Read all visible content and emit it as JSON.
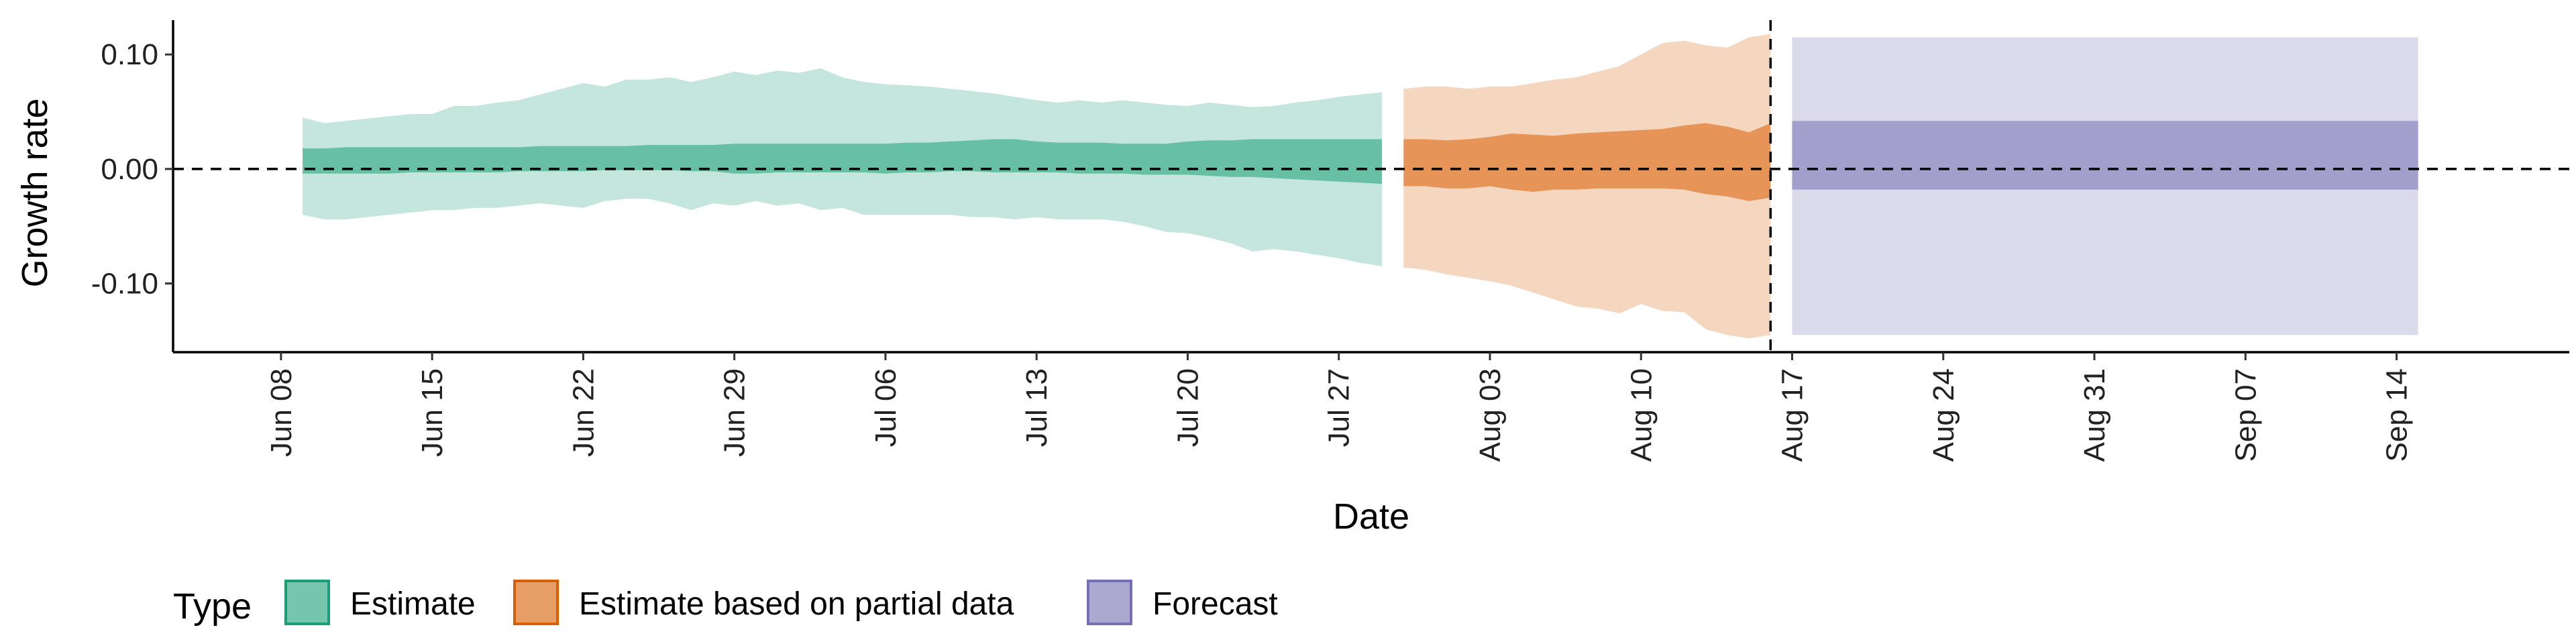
{
  "chart_data": {
    "type": "area",
    "xlabel": "Date",
    "ylabel": "Growth rate",
    "ylim": [
      -0.16,
      0.13
    ],
    "xlim": [
      "2020-06-03",
      "2020-09-22"
    ],
    "y_ticks": [
      -0.1,
      0.0,
      0.1
    ],
    "y_tick_labels": [
      "-0.10",
      "0.00",
      "0.10"
    ],
    "x_ticks": [
      "2020-06-08",
      "2020-06-15",
      "2020-06-22",
      "2020-06-29",
      "2020-07-06",
      "2020-07-13",
      "2020-07-20",
      "2020-07-27",
      "2020-08-03",
      "2020-08-10",
      "2020-08-17",
      "2020-08-24",
      "2020-08-31",
      "2020-09-07",
      "2020-09-14"
    ],
    "x_tick_labels": [
      "Jun 08",
      "Jun 15",
      "Jun 22",
      "Jun 29",
      "Jul 06",
      "Jul 13",
      "Jul 20",
      "Jul 27",
      "Aug 03",
      "Aug 10",
      "Aug 17",
      "Aug 24",
      "Aug 31",
      "Sep 07",
      "Sep 14"
    ],
    "reference_lines": {
      "horizontal_y": 0.0,
      "vertical_x": "2020-08-16"
    },
    "legend": {
      "title": "Type",
      "placement": "bottom-left",
      "entries": [
        {
          "label": "Estimate",
          "color": "#1b9e77"
        },
        {
          "label": "Estimate based on partial data",
          "color": "#d95f02"
        },
        {
          "label": "Forecast",
          "color": "#7570b3"
        }
      ]
    },
    "series": [
      {
        "type": "Estimate",
        "color": "#1b9e77",
        "x": [
          "2020-06-09",
          "2020-06-10",
          "2020-06-11",
          "2020-06-12",
          "2020-06-13",
          "2020-06-14",
          "2020-06-15",
          "2020-06-16",
          "2020-06-17",
          "2020-06-18",
          "2020-06-19",
          "2020-06-20",
          "2020-06-21",
          "2020-06-22",
          "2020-06-23",
          "2020-06-24",
          "2020-06-25",
          "2020-06-26",
          "2020-06-27",
          "2020-06-28",
          "2020-06-29",
          "2020-06-30",
          "2020-07-01",
          "2020-07-02",
          "2020-07-03",
          "2020-07-04",
          "2020-07-05",
          "2020-07-06",
          "2020-07-07",
          "2020-07-08",
          "2020-07-09",
          "2020-07-10",
          "2020-07-11",
          "2020-07-12",
          "2020-07-13",
          "2020-07-14",
          "2020-07-15",
          "2020-07-16",
          "2020-07-17",
          "2020-07-18",
          "2020-07-19",
          "2020-07-20",
          "2020-07-21",
          "2020-07-22",
          "2020-07-23",
          "2020-07-24",
          "2020-07-25",
          "2020-07-26",
          "2020-07-27",
          "2020-07-28",
          "2020-07-29"
        ],
        "outer_upper": [
          0.045,
          0.04,
          0.042,
          0.044,
          0.046,
          0.048,
          0.048,
          0.055,
          0.055,
          0.058,
          0.06,
          0.065,
          0.07,
          0.075,
          0.072,
          0.078,
          0.078,
          0.08,
          0.076,
          0.08,
          0.085,
          0.082,
          0.086,
          0.084,
          0.088,
          0.08,
          0.076,
          0.074,
          0.073,
          0.072,
          0.07,
          0.068,
          0.066,
          0.063,
          0.06,
          0.058,
          0.06,
          0.058,
          0.06,
          0.058,
          0.056,
          0.055,
          0.058,
          0.056,
          0.054,
          0.055,
          0.058,
          0.06,
          0.063,
          0.065,
          0.067
        ],
        "outer_lower": [
          -0.04,
          -0.044,
          -0.044,
          -0.042,
          -0.04,
          -0.038,
          -0.036,
          -0.036,
          -0.034,
          -0.034,
          -0.032,
          -0.03,
          -0.032,
          -0.034,
          -0.028,
          -0.026,
          -0.026,
          -0.03,
          -0.036,
          -0.03,
          -0.032,
          -0.028,
          -0.032,
          -0.03,
          -0.036,
          -0.034,
          -0.04,
          -0.04,
          -0.04,
          -0.04,
          -0.04,
          -0.042,
          -0.042,
          -0.044,
          -0.042,
          -0.044,
          -0.044,
          -0.044,
          -0.046,
          -0.05,
          -0.055,
          -0.056,
          -0.06,
          -0.065,
          -0.072,
          -0.07,
          -0.072,
          -0.075,
          -0.078,
          -0.082,
          -0.085
        ],
        "inner_upper": [
          0.018,
          0.018,
          0.019,
          0.019,
          0.019,
          0.019,
          0.019,
          0.019,
          0.019,
          0.019,
          0.019,
          0.02,
          0.02,
          0.02,
          0.02,
          0.02,
          0.021,
          0.021,
          0.021,
          0.021,
          0.022,
          0.022,
          0.022,
          0.022,
          0.022,
          0.022,
          0.022,
          0.022,
          0.023,
          0.023,
          0.024,
          0.025,
          0.026,
          0.026,
          0.024,
          0.023,
          0.023,
          0.023,
          0.022,
          0.022,
          0.022,
          0.024,
          0.025,
          0.025,
          0.026,
          0.026,
          0.026,
          0.026,
          0.026,
          0.026,
          0.026
        ],
        "inner_lower": [
          -0.004,
          -0.004,
          -0.004,
          -0.004,
          -0.004,
          -0.003,
          -0.003,
          -0.003,
          -0.003,
          -0.003,
          -0.002,
          -0.002,
          -0.002,
          -0.002,
          -0.001,
          -0.001,
          -0.001,
          -0.001,
          -0.002,
          -0.002,
          -0.004,
          -0.004,
          -0.003,
          -0.003,
          -0.003,
          -0.003,
          -0.003,
          -0.004,
          -0.003,
          -0.003,
          -0.002,
          -0.002,
          -0.003,
          -0.003,
          -0.003,
          -0.003,
          -0.004,
          -0.004,
          -0.004,
          -0.005,
          -0.005,
          -0.005,
          -0.006,
          -0.007,
          -0.007,
          -0.008,
          -0.009,
          -0.01,
          -0.011,
          -0.012,
          -0.013
        ]
      },
      {
        "type": "Estimate based on partial data",
        "color": "#d95f02",
        "x": [
          "2020-07-30",
          "2020-07-31",
          "2020-08-01",
          "2020-08-02",
          "2020-08-03",
          "2020-08-04",
          "2020-08-05",
          "2020-08-06",
          "2020-08-07",
          "2020-08-08",
          "2020-08-09",
          "2020-08-10",
          "2020-08-11",
          "2020-08-12",
          "2020-08-13",
          "2020-08-14",
          "2020-08-15",
          "2020-08-16"
        ],
        "outer_upper": [
          0.07,
          0.072,
          0.072,
          0.07,
          0.072,
          0.072,
          0.075,
          0.078,
          0.08,
          0.085,
          0.09,
          0.1,
          0.11,
          0.112,
          0.108,
          0.106,
          0.115,
          0.118
        ],
        "outer_lower": [
          -0.086,
          -0.088,
          -0.092,
          -0.095,
          -0.098,
          -0.102,
          -0.108,
          -0.114,
          -0.12,
          -0.122,
          -0.126,
          -0.118,
          -0.124,
          -0.125,
          -0.14,
          -0.145,
          -0.148,
          -0.145
        ],
        "inner_upper": [
          0.026,
          0.026,
          0.025,
          0.026,
          0.028,
          0.031,
          0.03,
          0.029,
          0.031,
          0.032,
          0.033,
          0.034,
          0.035,
          0.038,
          0.04,
          0.037,
          0.032,
          0.04
        ],
        "inner_lower": [
          -0.015,
          -0.015,
          -0.017,
          -0.017,
          -0.015,
          -0.018,
          -0.02,
          -0.018,
          -0.018,
          -0.017,
          -0.017,
          -0.017,
          -0.017,
          -0.018,
          -0.022,
          -0.024,
          -0.028,
          -0.025
        ]
      },
      {
        "type": "Forecast",
        "color": "#7570b3",
        "x": [
          "2020-08-17",
          "2020-09-15"
        ],
        "outer_upper": [
          0.115,
          0.115
        ],
        "outer_lower": [
          -0.145,
          -0.145
        ],
        "inner_upper": [
          0.042,
          0.042
        ],
        "inner_lower": [
          -0.018,
          -0.018
        ]
      }
    ]
  }
}
